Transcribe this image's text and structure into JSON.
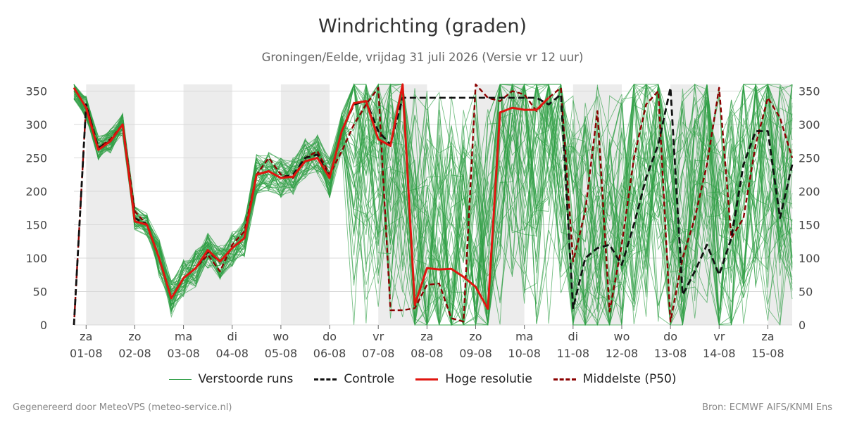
{
  "page": {
    "title": "Windrichting (graden)",
    "subtitle": "Groningen/Eelde, vrijdag 31 juli 2026 (Versie vr 12 uur)",
    "footer_left": "Gegenereerd door MeteoVPS (meteo-service.nl)",
    "footer_right": "Bron: ECMWF AIFS/KNMI Ens"
  },
  "colors": {
    "ensemble": "#2e9e44",
    "control": "#111111",
    "hires": "#e0150f",
    "p50": "#8b0000",
    "weekend_shade": "#ececec",
    "grid": "#d9d9d9"
  },
  "chart_data": {
    "type": "line",
    "title": "Windrichting (graden)",
    "ylim": [
      0,
      360
    ],
    "yticks": [
      0,
      50,
      100,
      150,
      200,
      250,
      300,
      350
    ],
    "xlim": [
      -0.25,
      14.5
    ],
    "grid": "horizontal",
    "legend_position": "bottom",
    "x_ticks": [
      {
        "x": 0,
        "day": "za",
        "date": "01-08"
      },
      {
        "x": 1,
        "day": "zo",
        "date": "02-08"
      },
      {
        "x": 2,
        "day": "ma",
        "date": "03-08"
      },
      {
        "x": 3,
        "day": "di",
        "date": "04-08"
      },
      {
        "x": 4,
        "day": "wo",
        "date": "05-08"
      },
      {
        "x": 5,
        "day": "do",
        "date": "06-08"
      },
      {
        "x": 6,
        "day": "vr",
        "date": "07-08"
      },
      {
        "x": 7,
        "day": "za",
        "date": "08-08"
      },
      {
        "x": 8,
        "day": "zo",
        "date": "09-08"
      },
      {
        "x": 9,
        "day": "ma",
        "date": "10-08"
      },
      {
        "x": 10,
        "day": "di",
        "date": "11-08"
      },
      {
        "x": 11,
        "day": "wo",
        "date": "12-08"
      },
      {
        "x": 12,
        "day": "do",
        "date": "13-08"
      },
      {
        "x": 13,
        "day": "vr",
        "date": "14-08"
      },
      {
        "x": 14,
        "day": "za",
        "date": "15-08"
      }
    ],
    "shaded_bands": [
      [
        0,
        1
      ],
      [
        2,
        3
      ],
      [
        4,
        5
      ],
      [
        6,
        7
      ],
      [
        8,
        9
      ],
      [
        10,
        11
      ],
      [
        12,
        13
      ],
      [
        14,
        14.5
      ]
    ],
    "series": [
      {
        "name": "Verstoorde runs",
        "style": "ensemble",
        "x": [
          -0.25,
          0,
          0.25,
          0.5,
          0.75,
          1,
          1.25,
          1.5,
          1.75,
          2,
          2.25,
          2.5,
          2.75,
          3,
          3.25,
          3.5,
          3.75,
          4,
          4.25,
          4.5,
          4.75,
          5,
          5.25,
          5.5,
          5.75,
          6,
          6.25,
          6.5,
          6.75,
          7,
          7.25,
          7.5,
          7.75,
          8,
          8.25,
          8.5,
          8.75,
          9,
          9.25,
          9.5,
          9.75,
          10,
          10.25,
          10.5,
          10.75,
          11,
          11.25,
          11.5,
          11.75,
          12,
          12.25,
          12.5,
          12.75,
          13,
          13.25,
          13.5,
          13.75,
          14,
          14.25,
          14.5
        ],
        "base": [
          355,
          325,
          265,
          275,
          300,
          160,
          150,
          100,
          40,
          70,
          85,
          110,
          95,
          115,
          130,
          225,
          230,
          220,
          225,
          250,
          255,
          220,
          290,
          330,
          335,
          290,
          270,
          340,
          40,
          85,
          85,
          85,
          70,
          55,
          30,
          320,
          325,
          325,
          325,
          345,
          350,
          90,
          115,
          120,
          90,
          150,
          220,
          280,
          350,
          100,
          160,
          230,
          330,
          80,
          150,
          240,
          290,
          290,
          170,
          250
        ]
      },
      {
        "name": "Controle",
        "style": "control",
        "x": [
          -0.25,
          0,
          0.25,
          0.5,
          0.75,
          1,
          1.25,
          1.5,
          1.75,
          2,
          2.25,
          2.5,
          2.75,
          3,
          3.25,
          3.5,
          3.75,
          4,
          4.25,
          4.5,
          4.75,
          5,
          5.25,
          5.5,
          5.75,
          6,
          6.25,
          6.5,
          6.75,
          7,
          7.25,
          7.5,
          7.75,
          8,
          8.25,
          8.5,
          8.75,
          9,
          9.25,
          9.5,
          9.75,
          10,
          10.25,
          10.5,
          10.75,
          11,
          11.25,
          11.5,
          11.75,
          12,
          12.25,
          12.5,
          12.75,
          13,
          13.25,
          13.5,
          13.75,
          14,
          14.25,
          14.5
        ],
        "values": [
          0,
          330,
          265,
          275,
          300,
          160,
          150,
          100,
          40,
          70,
          85,
          110,
          95,
          115,
          130,
          225,
          230,
          220,
          225,
          250,
          255,
          220,
          290,
          330,
          335,
          290,
          270,
          340,
          340,
          340,
          340,
          340,
          340,
          340,
          340,
          340,
          340,
          340,
          340,
          330,
          345,
          25,
          100,
          115,
          120,
          90,
          150,
          220,
          270,
          355,
          45,
          80,
          120,
          75,
          130,
          240,
          290,
          290,
          160,
          240
        ]
      },
      {
        "name": "Hoge resolutie",
        "style": "hires",
        "x": [
          -0.25,
          0,
          0.25,
          0.5,
          0.75,
          1,
          1.25,
          1.5,
          1.75,
          2,
          2.25,
          2.5,
          2.75,
          3,
          3.25,
          3.5,
          3.75,
          4,
          4.25,
          4.5,
          4.75,
          5,
          5.25,
          5.5,
          5.75,
          6,
          6.25,
          6.5,
          6.75,
          7,
          7.25,
          7.5,
          7.75,
          8,
          8.25,
          8.5,
          8.75,
          9,
          9.25,
          9.5
        ],
        "values": [
          355,
          325,
          262,
          275,
          300,
          155,
          150,
          100,
          40,
          70,
          85,
          112,
          95,
          115,
          130,
          225,
          230,
          220,
          222,
          245,
          250,
          220,
          290,
          332,
          335,
          278,
          268,
          360,
          30,
          85,
          83,
          84,
          72,
          57,
          24,
          318,
          325,
          322,
          322,
          340
        ]
      },
      {
        "name": "Middelste (P50)",
        "style": "p50",
        "x": [
          -0.25,
          0,
          0.25,
          0.5,
          0.75,
          1,
          1.25,
          1.5,
          1.75,
          2,
          2.25,
          2.5,
          2.75,
          3,
          3.25,
          3.5,
          3.75,
          4,
          4.25,
          4.5,
          4.75,
          5,
          5.25,
          5.5,
          5.75,
          6,
          6.25,
          6.5,
          6.75,
          7,
          7.25,
          7.5,
          7.75,
          8,
          8.25,
          8.5,
          8.75,
          9,
          9.25,
          9.5,
          9.75,
          10,
          10.25,
          10.5,
          10.75,
          11,
          11.25,
          11.5,
          11.75,
          12,
          12.25,
          12.5,
          12.75,
          13,
          13.25,
          13.5,
          13.75,
          14,
          14.25,
          14.5
        ],
        "values": [
          0,
          330,
          265,
          278,
          300,
          170,
          150,
          100,
          40,
          70,
          85,
          105,
          80,
          120,
          140,
          225,
          250,
          225,
          220,
          250,
          260,
          225,
          260,
          300,
          330,
          355,
          22,
          22,
          25,
          60,
          62,
          10,
          5,
          360,
          340,
          335,
          350,
          345,
          320,
          340,
          355,
          95,
          170,
          320,
          20,
          120,
          250,
          330,
          350,
          5,
          100,
          160,
          240,
          355,
          130,
          160,
          270,
          340,
          310,
          250
        ]
      }
    ]
  },
  "legend": {
    "items": [
      {
        "label": "Verstoorde runs",
        "style": "ensemble"
      },
      {
        "label": "Controle",
        "style": "control"
      },
      {
        "label": "Hoge resolutie",
        "style": "hires"
      },
      {
        "label": "Middelste (P50)",
        "style": "p50"
      }
    ]
  }
}
